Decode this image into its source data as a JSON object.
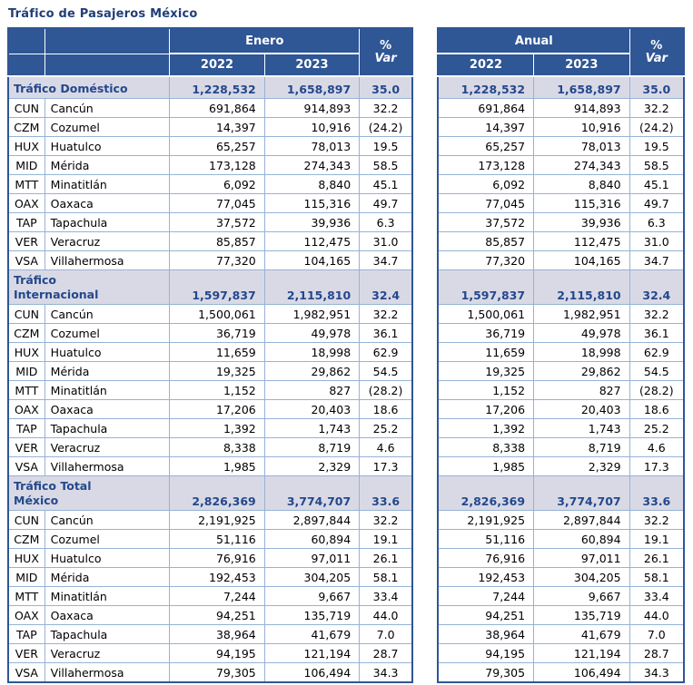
{
  "title": "Tráfico de Pasajeros México",
  "header": {
    "left_period": "Enero",
    "right_period": "Anual",
    "years": [
      "2022",
      "2023"
    ],
    "var_line1": "%",
    "var_line2": "Var"
  },
  "colors": {
    "header_bg": "#2F5695",
    "header_text": "#FFFFFF",
    "section_bg": "#D9D9E6",
    "section_text": "#24488C",
    "grid_border": "#95B3D7",
    "outer_border": "#2F5695",
    "title_text": "#1F3E78"
  },
  "sections": [
    {
      "label": "Tráfico Doméstico",
      "total": {
        "y2022": "1,228,532",
        "y2023": "1,658,897",
        "var": "35.0"
      },
      "rows": [
        {
          "code": "CUN",
          "name": "Cancún",
          "y2022": "691,864",
          "y2023": "914,893",
          "var": "32.2"
        },
        {
          "code": "CZM",
          "name": "Cozumel",
          "y2022": "14,397",
          "y2023": "10,916",
          "var": "(24.2)"
        },
        {
          "code": "HUX",
          "name": "Huatulco",
          "y2022": "65,257",
          "y2023": "78,013",
          "var": "19.5"
        },
        {
          "code": "MID",
          "name": "Mérida",
          "y2022": "173,128",
          "y2023": "274,343",
          "var": "58.5"
        },
        {
          "code": "MTT",
          "name": "Minatitlán",
          "y2022": "6,092",
          "y2023": "8,840",
          "var": "45.1"
        },
        {
          "code": "OAX",
          "name": "Oaxaca",
          "y2022": "77,045",
          "y2023": "115,316",
          "var": "49.7"
        },
        {
          "code": "TAP",
          "name": "Tapachula",
          "y2022": "37,572",
          "y2023": "39,936",
          "var": "6.3"
        },
        {
          "code": "VER",
          "name": "Veracruz",
          "y2022": "85,857",
          "y2023": "112,475",
          "var": "31.0"
        },
        {
          "code": "VSA",
          "name": "Villahermosa",
          "y2022": "77,320",
          "y2023": "104,165",
          "var": "34.7"
        }
      ]
    },
    {
      "label": "Tráfico Internacional",
      "total": {
        "y2022": "1,597,837",
        "y2023": "2,115,810",
        "var": "32.4"
      },
      "rows": [
        {
          "code": "CUN",
          "name": "Cancún",
          "y2022": "1,500,061",
          "y2023": "1,982,951",
          "var": "32.2"
        },
        {
          "code": "CZM",
          "name": "Cozumel",
          "y2022": "36,719",
          "y2023": "49,978",
          "var": "36.1"
        },
        {
          "code": "HUX",
          "name": "Huatulco",
          "y2022": "11,659",
          "y2023": "18,998",
          "var": "62.9"
        },
        {
          "code": "MID",
          "name": "Mérida",
          "y2022": "19,325",
          "y2023": "29,862",
          "var": "54.5"
        },
        {
          "code": "MTT",
          "name": "Minatitlán",
          "y2022": "1,152",
          "y2023": "827",
          "var": "(28.2)"
        },
        {
          "code": "OAX",
          "name": "Oaxaca",
          "y2022": "17,206",
          "y2023": "20,403",
          "var": "18.6"
        },
        {
          "code": "TAP",
          "name": "Tapachula",
          "y2022": "1,392",
          "y2023": "1,743",
          "var": "25.2"
        },
        {
          "code": "VER",
          "name": "Veracruz",
          "y2022": "8,338",
          "y2023": "8,719",
          "var": "4.6"
        },
        {
          "code": "VSA",
          "name": "Villahermosa",
          "y2022": "1,985",
          "y2023": "2,329",
          "var": "17.3"
        }
      ]
    },
    {
      "label": "Tráfico Total México",
      "total": {
        "y2022": "2,826,369",
        "y2023": "3,774,707",
        "var": "33.6"
      },
      "rows": [
        {
          "code": "CUN",
          "name": "Cancún",
          "y2022": "2,191,925",
          "y2023": "2,897,844",
          "var": "32.2"
        },
        {
          "code": "CZM",
          "name": "Cozumel",
          "y2022": "51,116",
          "y2023": "60,894",
          "var": "19.1"
        },
        {
          "code": "HUX",
          "name": "Huatulco",
          "y2022": "76,916",
          "y2023": "97,011",
          "var": "26.1"
        },
        {
          "code": "MID",
          "name": "Mérida",
          "y2022": "192,453",
          "y2023": "304,205",
          "var": "58.1"
        },
        {
          "code": "MTT",
          "name": "Minatitlán",
          "y2022": "7,244",
          "y2023": "9,667",
          "var": "33.4"
        },
        {
          "code": "OAX",
          "name": "Oaxaca",
          "y2022": "94,251",
          "y2023": "135,719",
          "var": "44.0"
        },
        {
          "code": "TAP",
          "name": "Tapachula",
          "y2022": "38,964",
          "y2023": "41,679",
          "var": "7.0"
        },
        {
          "code": "VER",
          "name": "Veracruz",
          "y2022": "94,195",
          "y2023": "121,194",
          "var": "28.7"
        },
        {
          "code": "VSA",
          "name": "Villahermosa",
          "y2022": "79,305",
          "y2023": "106,494",
          "var": "34.3"
        }
      ]
    }
  ]
}
